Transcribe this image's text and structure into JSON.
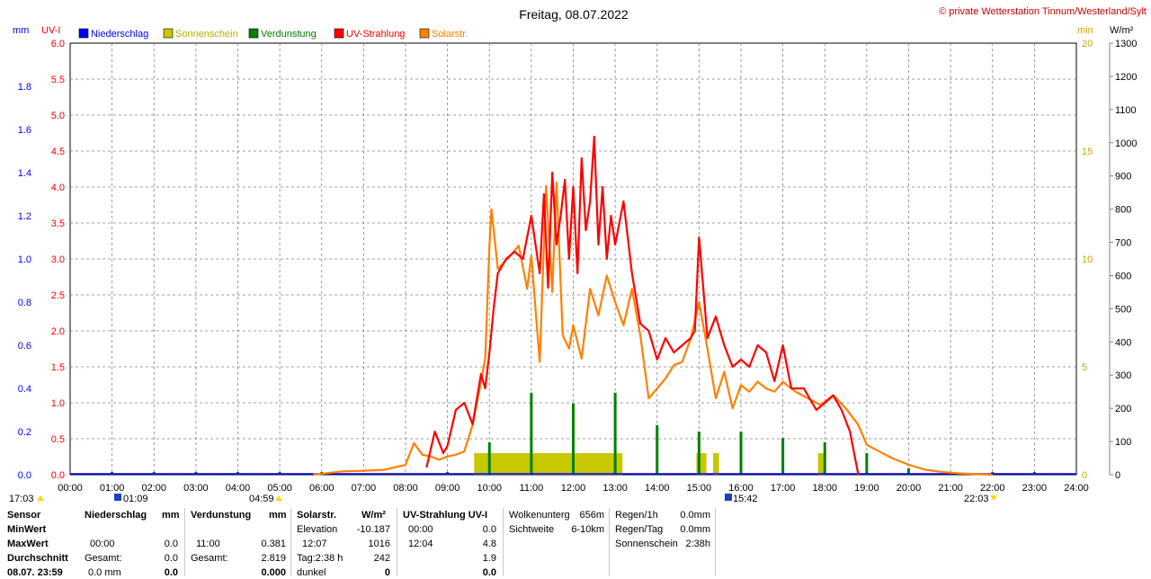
{
  "header": {
    "title": "Freitag, 08.07.2022",
    "copyright": "© private Wetterstation Tinnum/Westerland/Sylt",
    "left_units": [
      "mm",
      "UV-I"
    ],
    "right_units": [
      "min",
      "W/m²"
    ]
  },
  "legend": [
    {
      "label": "Niederschlag",
      "color": "#0000ff"
    },
    {
      "label": "Sonnenschein",
      "color": "#c8c800"
    },
    {
      "label": "Verdunstung",
      "color": "#008000"
    },
    {
      "label": "UV-Strahlung",
      "color": "#ff0000"
    },
    {
      "label": "Solarstr.",
      "color": "#ff8000"
    }
  ],
  "sun_events": {
    "sunrise_marker": "17:03",
    "moonrise": "01:09",
    "sunrise": "04:59",
    "moonset": "15:42",
    "sunset": "22:03"
  },
  "chart_data": {
    "type": "line",
    "title": "Freitag, 08.07.2022",
    "x_ticks": [
      "00:00",
      "01:00",
      "02:00",
      "03:00",
      "04:00",
      "05:00",
      "06:00",
      "07:00",
      "08:00",
      "09:00",
      "10:00",
      "11:00",
      "12:00",
      "13:00",
      "14:00",
      "15:00",
      "16:00",
      "17:00",
      "18:00",
      "19:00",
      "20:00",
      "21:00",
      "22:00",
      "23:00",
      "24:00"
    ],
    "axes": {
      "mm": {
        "range": [
          0,
          2.0
        ],
        "ticks": [
          "0.0",
          "0.2",
          "0.4",
          "0.6",
          "0.8",
          "1.0",
          "1.2",
          "1.4",
          "1.6",
          "1.8"
        ]
      },
      "uvi": {
        "range": [
          0,
          6.0
        ],
        "ticks": [
          "0.0",
          "0.5",
          "1.0",
          "1.5",
          "2.0",
          "2.5",
          "3.0",
          "3.5",
          "4.0",
          "4.5",
          "5.0",
          "5.5",
          "6.0"
        ]
      },
      "min": {
        "range": [
          0,
          20
        ],
        "ticks": [
          "0",
          "5",
          "10",
          "15",
          "20"
        ]
      },
      "wm2": {
        "range": [
          0,
          1300
        ],
        "ticks": [
          "0",
          "100",
          "200",
          "300",
          "400",
          "500",
          "600",
          "700",
          "800",
          "900",
          "1000",
          "1100",
          "1200",
          "1300"
        ]
      }
    },
    "series": [
      {
        "name": "Solarstr.",
        "unit": "W/m²",
        "color": "#ff8000",
        "x": [
          5.8,
          6.5,
          7.0,
          7.5,
          8.0,
          8.2,
          8.4,
          8.6,
          8.8,
          9.0,
          9.2,
          9.4,
          9.6,
          9.8,
          9.9,
          10.0,
          10.05,
          10.2,
          10.5,
          10.7,
          10.9,
          11.0,
          11.1,
          11.2,
          11.35,
          11.5,
          11.6,
          11.75,
          11.9,
          12.0,
          12.2,
          12.4,
          12.6,
          12.8,
          13.0,
          13.2,
          13.4,
          13.6,
          13.8,
          14.0,
          14.2,
          14.4,
          14.6,
          14.8,
          15.0,
          15.2,
          15.4,
          15.6,
          15.8,
          16.0,
          16.2,
          16.4,
          16.6,
          16.8,
          17.0,
          17.3,
          17.6,
          17.9,
          18.2,
          18.5,
          18.8,
          19.0,
          19.3,
          19.6,
          20.0,
          20.4,
          20.8,
          21.2,
          21.6,
          22.0
        ],
        "values": [
          0,
          10,
          12,
          15,
          30,
          95,
          60,
          55,
          45,
          55,
          60,
          70,
          150,
          280,
          350,
          690,
          800,
          620,
          660,
          690,
          560,
          660,
          500,
          340,
          870,
          550,
          880,
          420,
          380,
          450,
          350,
          560,
          480,
          600,
          520,
          450,
          560,
          420,
          230,
          260,
          290,
          330,
          340,
          410,
          520,
          380,
          230,
          310,
          200,
          270,
          250,
          280,
          260,
          250,
          280,
          250,
          230,
          210,
          240,
          200,
          150,
          90,
          70,
          50,
          30,
          15,
          8,
          4,
          2,
          0
        ]
      },
      {
        "name": "UV-Strahlung",
        "unit": "UV-I",
        "color": "#ff0000",
        "x": [
          8.5,
          8.7,
          8.9,
          9.0,
          9.2,
          9.4,
          9.6,
          9.8,
          9.9,
          10.0,
          10.1,
          10.2,
          10.4,
          10.6,
          10.8,
          11.0,
          11.2,
          11.3,
          11.4,
          11.5,
          11.6,
          11.7,
          11.8,
          11.9,
          12.0,
          12.1,
          12.2,
          12.3,
          12.4,
          12.5,
          12.6,
          12.7,
          12.8,
          12.9,
          13.0,
          13.2,
          13.4,
          13.6,
          13.8,
          14.0,
          14.2,
          14.4,
          14.6,
          14.8,
          14.9,
          15.0,
          15.2,
          15.4,
          15.6,
          15.8,
          16.0,
          16.2,
          16.4,
          16.6,
          16.8,
          17.0,
          17.2,
          17.5,
          17.8,
          18.0,
          18.2,
          18.4,
          18.6,
          18.8
        ],
        "values": [
          0.1,
          0.6,
          0.3,
          0.4,
          0.9,
          1.0,
          0.7,
          1.4,
          1.2,
          1.7,
          2.3,
          2.8,
          3.0,
          3.1,
          3.0,
          3.6,
          2.8,
          3.9,
          2.6,
          4.2,
          3.2,
          3.6,
          4.1,
          3.0,
          4.0,
          2.8,
          4.4,
          3.4,
          3.8,
          4.7,
          3.2,
          4.0,
          3.0,
          3.6,
          3.2,
          3.8,
          2.8,
          2.1,
          2.0,
          1.6,
          1.9,
          1.7,
          1.8,
          1.9,
          2.0,
          3.3,
          1.9,
          2.2,
          1.8,
          1.5,
          1.6,
          1.5,
          1.8,
          1.7,
          1.3,
          1.8,
          1.2,
          1.2,
          0.9,
          1.0,
          1.1,
          0.9,
          0.6,
          0.0
        ]
      },
      {
        "name": "Sonnenschein",
        "unit": "min",
        "color": "#c8c800",
        "x": [
          9.7,
          9.8,
          9.9,
          10.0,
          10.1,
          10.2,
          10.3,
          10.4,
          10.5,
          10.6,
          10.7,
          10.8,
          10.9,
          11.0,
          11.1,
          11.2,
          11.3,
          11.4,
          11.5,
          11.6,
          11.7,
          11.8,
          11.9,
          12.0,
          12.1,
          12.2,
          12.3,
          12.4,
          12.5,
          12.6,
          12.7,
          12.8,
          12.9,
          13.0,
          13.1,
          15.0,
          15.1,
          15.4,
          17.9
        ],
        "values": [
          1,
          1,
          1,
          1,
          1,
          1,
          1,
          1,
          1,
          1,
          1,
          1,
          1,
          1,
          1,
          1,
          1,
          1,
          1,
          1,
          1,
          1,
          1,
          1,
          1,
          1,
          1,
          1,
          1,
          1,
          1,
          1,
          1,
          1,
          1,
          1,
          1,
          1,
          1
        ]
      },
      {
        "name": "Verdunstung",
        "unit": "mm",
        "color": "#008000",
        "x": [
          1.0,
          2.0,
          3.0,
          4.0,
          5.0,
          6.0,
          9.0,
          10.0,
          11.0,
          12.0,
          13.0,
          14.0,
          15.0,
          16.0,
          17.0,
          18.0,
          19.0,
          20.0,
          21.0,
          22.0,
          23.0
        ],
        "values": [
          0.005,
          0.005,
          0.005,
          0.005,
          0.005,
          0.005,
          0.01,
          0.15,
          0.38,
          0.33,
          0.38,
          0.23,
          0.2,
          0.2,
          0.17,
          0.15,
          0.1,
          0.03,
          0.01,
          0.01,
          0.005
        ]
      }
    ]
  },
  "table": {
    "columns": {
      "sensor": {
        "header": "Sensor",
        "rows": [
          "MinWert",
          "MaxWert",
          "Durchschnitt",
          "08.07. 23:59"
        ]
      },
      "niederschlag": {
        "header": "Niederschlag",
        "unit": "mm",
        "rows": [
          [
            "",
            ""
          ],
          [
            "00:00",
            "0.0"
          ],
          [
            "Gesamt:",
            "0.0"
          ],
          [
            "0.0 mm",
            "0.0"
          ]
        ]
      },
      "verdunstung": {
        "header": "Verdunstung",
        "unit": "mm",
        "rows": [
          [
            "",
            ""
          ],
          [
            "11:00",
            "0.381"
          ],
          [
            "Gesamt:",
            "2.819"
          ],
          [
            "",
            "0.000"
          ]
        ]
      },
      "solar": {
        "header": "Solarstr.",
        "unit": "W/m²",
        "rows": [
          [
            "Elevation",
            "-10.187"
          ],
          [
            "12:07",
            "1016"
          ],
          [
            "Tag:2:38 h",
            "242"
          ],
          [
            "dunkel",
            "0"
          ]
        ]
      },
      "uv": {
        "header": "UV-Strahlung UV-I",
        "unit": "",
        "rows": [
          [
            "00:00",
            "0.0"
          ],
          [
            "12:04",
            "4.8"
          ],
          [
            "",
            "1.9"
          ],
          [
            "",
            "0.0"
          ]
        ]
      },
      "wolken": {
        "rows": [
          [
            "Wolkenunterg",
            "656m"
          ],
          [
            "Sichtweite",
            "6-10km"
          ]
        ]
      },
      "regen": {
        "rows": [
          [
            "Regen/1h",
            "0.0mm"
          ],
          [
            "Regen/Tag",
            "0.0mm"
          ],
          [
            "Sonnenschein",
            "2:38h"
          ]
        ]
      }
    }
  }
}
